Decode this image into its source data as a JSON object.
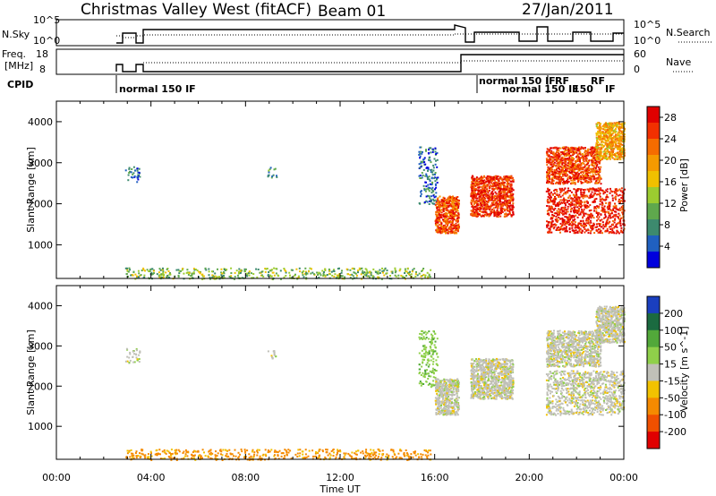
{
  "header": {
    "title": "Christmas Valley West (fitACF)",
    "beam": "Beam 01",
    "date": "27/Jan/2011"
  },
  "status_panels": {
    "nsky_label": "N.Sky",
    "nsearch_label": "N.Search",
    "freq_label_1": "Freq.",
    "freq_label_2": "[MHz]",
    "nave_label": "Nave",
    "cpid_label": "CPID",
    "noise_left_ticks": [
      "10^5",
      "10^0"
    ],
    "noise_right_ticks": [
      "10^5",
      "10^0"
    ],
    "freq_left_ticks": [
      "18",
      "8"
    ],
    "freq_right_ticks": [
      "60",
      "0"
    ],
    "cpid_entries": [
      "normal 150 IF",
      "normal 150 IF",
      "normal 150 IF",
      "RF",
      "150",
      "IF",
      "RF",
      "IF"
    ]
  },
  "chart_data": [
    {
      "type": "heatmap",
      "panel": "power",
      "title": "",
      "xlabel": "Time UT",
      "ylabel": "Slant Range [km]",
      "x_ticks": [
        "00:00",
        "04:00",
        "08:00",
        "12:00",
        "16:00",
        "20:00",
        "00:00"
      ],
      "y_ticks": [
        1000,
        2000,
        3000,
        4000
      ],
      "xlim": [
        "00:00",
        "24:00"
      ],
      "ylim": [
        180,
        4500
      ],
      "colorbar": {
        "label": "Power [dB]",
        "ticks": [
          "4",
          "8",
          "12",
          "16",
          "20",
          "24",
          "28"
        ],
        "range": [
          0,
          30
        ],
        "colors": [
          "#0000dd",
          "#2060c0",
          "#3d8a6e",
          "#5fa84d",
          "#9ccc30",
          "#f0c000",
          "#f59a00",
          "#f56c00",
          "#f23000",
          "#e00000"
        ]
      },
      "regions": [
        {
          "t0": 2.9,
          "t1": 3.5,
          "r0": 2550,
          "r1": 2950,
          "value": 6
        },
        {
          "t0": 2.9,
          "t1": 15.8,
          "r0": 180,
          "r1": 450,
          "value": 12
        },
        {
          "t0": 8.9,
          "t1": 9.3,
          "r0": 2650,
          "r1": 2900,
          "value": 8
        },
        {
          "t0": 15.3,
          "t1": 16.1,
          "r0": 2000,
          "r1": 3400,
          "value": 6
        },
        {
          "t0": 16.0,
          "t1": 17.0,
          "r0": 1300,
          "r1": 2200,
          "value": 24
        },
        {
          "t0": 17.5,
          "t1": 19.3,
          "r0": 1700,
          "r1": 2700,
          "value": 26
        },
        {
          "t0": 20.7,
          "t1": 24.0,
          "r0": 1300,
          "r1": 2400,
          "value": 27
        },
        {
          "t0": 20.7,
          "t1": 23.0,
          "r0": 2500,
          "r1": 3400,
          "value": 25
        },
        {
          "t0": 22.8,
          "t1": 24.0,
          "r0": 3100,
          "r1": 4000,
          "value": 19
        }
      ]
    },
    {
      "type": "heatmap",
      "panel": "velocity",
      "title": "",
      "xlabel": "Time UT",
      "ylabel": "Slant Range [km]",
      "x_ticks": [
        "00:00",
        "04:00",
        "08:00",
        "12:00",
        "16:00",
        "20:00",
        "00:00"
      ],
      "y_ticks": [
        1000,
        2000,
        3000,
        4000
      ],
      "xlim": [
        "00:00",
        "24:00"
      ],
      "ylim": [
        180,
        4500
      ],
      "colorbar": {
        "label": "Velocity [m s^-1]",
        "ticks": [
          "200",
          "100",
          "50",
          "15",
          "-15",
          "-50",
          "-100",
          "-200"
        ],
        "colors": [
          "#1a3fbf",
          "#1b6a40",
          "#52a83a",
          "#8fd04a",
          "#c0c0b8",
          "#f2c200",
          "#f58a00",
          "#f05000",
          "#e00000"
        ]
      },
      "regions": [
        {
          "t0": 2.9,
          "t1": 3.5,
          "r0": 2550,
          "r1": 2950,
          "value": 0
        },
        {
          "t0": 2.9,
          "t1": 15.8,
          "r0": 180,
          "r1": 450,
          "value": -60
        },
        {
          "t0": 8.9,
          "t1": 9.3,
          "r0": 2650,
          "r1": 2900,
          "value": 0
        },
        {
          "t0": 15.3,
          "t1": 16.1,
          "r0": 2000,
          "r1": 3400,
          "value": 40
        },
        {
          "t0": 16.0,
          "t1": 17.0,
          "r0": 1300,
          "r1": 2200,
          "value": 0
        },
        {
          "t0": 17.5,
          "t1": 19.3,
          "r0": 1700,
          "r1": 2700,
          "value": 0
        },
        {
          "t0": 20.7,
          "t1": 24.0,
          "r0": 1300,
          "r1": 2400,
          "value": 0
        },
        {
          "t0": 20.7,
          "t1": 23.0,
          "r0": 2500,
          "r1": 3400,
          "value": 0
        },
        {
          "t0": 22.8,
          "t1": 24.0,
          "r0": 3100,
          "r1": 4000,
          "value": 0
        }
      ]
    }
  ]
}
